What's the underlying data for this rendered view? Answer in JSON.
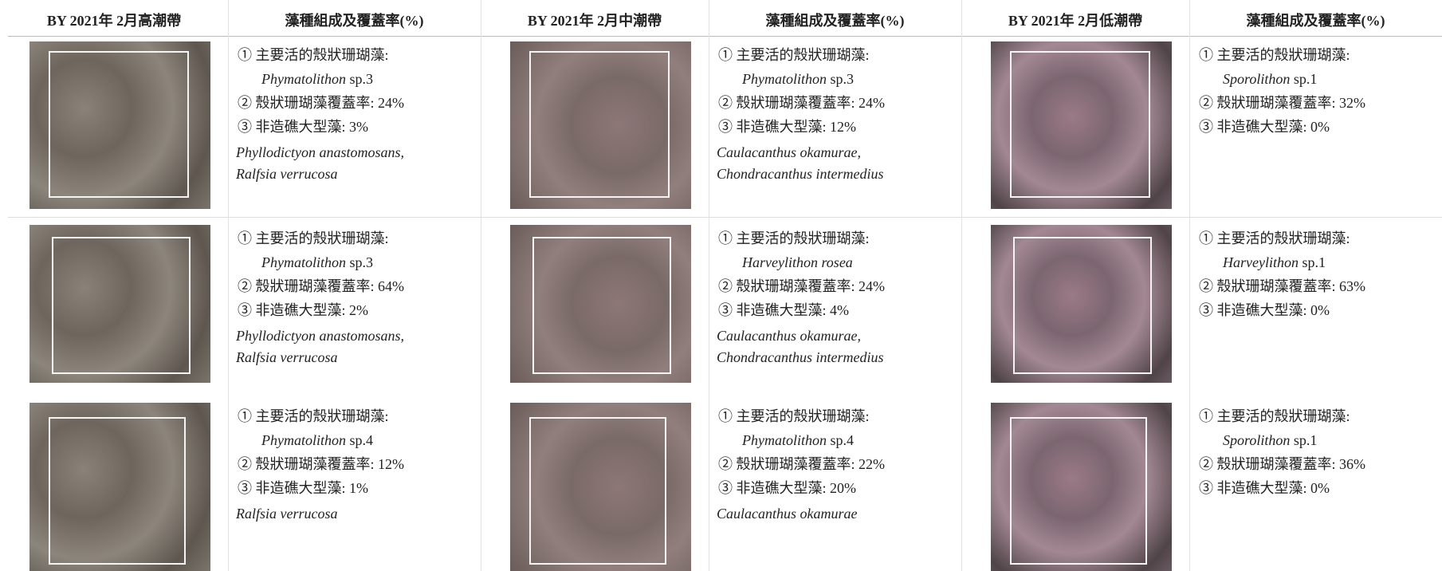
{
  "columns": [
    {
      "site": "BY 2021年 2月高潮帶",
      "composition": "藻種組成及覆蓋率(%)",
      "rows": [
        {
          "item1": "① 主要活的殼狀珊瑚藻:",
          "species": {
            "italic": "Phymatolithon",
            "plain": "sp.3"
          },
          "item2": "② 殼狀珊瑚藻覆蓋率: 24%",
          "item3": "③ 非造礁大型藻: 3%",
          "macroalgae": [
            "Phyllodictyon anastomosans,",
            "Ralfsia verrucosa"
          ]
        },
        {
          "item1": "① 主要活的殼狀珊瑚藻:",
          "species": {
            "italic": "Phymatolithon",
            "plain": "sp.3"
          },
          "item2": "② 殼狀珊瑚藻覆蓋率: 64%",
          "item3": "③ 非造礁大型藻: 2%",
          "macroalgae": [
            "Phyllodictyon anastomosans,",
            "Ralfsia verrucosa"
          ]
        },
        {
          "item1": "① 主要活的殼狀珊瑚藻:",
          "species": {
            "italic": "Phymatolithon",
            "plain": "sp.4"
          },
          "item2": "② 殼狀珊瑚藻覆蓋率: 12%",
          "item3": "③ 非造礁大型藻: 1%",
          "macroalgae": [
            "Ralfsia verrucosa"
          ]
        }
      ]
    },
    {
      "site": "BY 2021年 2月中潮帶",
      "composition": "藻種組成及覆蓋率(%)",
      "rows": [
        {
          "item1": "① 主要活的殼狀珊瑚藻:",
          "species": {
            "italic": "Phymatolithon",
            "plain": "sp.3"
          },
          "item2": "② 殼狀珊瑚藻覆蓋率: 24%",
          "item3": "③ 非造礁大型藻: 12%",
          "macroalgae": [
            "Caulacanthus okamurae,",
            "Chondracanthus intermedius"
          ]
        },
        {
          "item1": "① 主要活的殼狀珊瑚藻:",
          "species": {
            "italic": "Harveylithon rosea"
          },
          "item2": "② 殼狀珊瑚藻覆蓋率: 24%",
          "item3": "③ 非造礁大型藻: 4%",
          "macroalgae": [
            "Caulacanthus okamurae,",
            "Chondracanthus intermedius"
          ]
        },
        {
          "item1": "① 主要活的殼狀珊瑚藻:",
          "species": {
            "italic": "Phymatolithon",
            "plain": "sp.4"
          },
          "item2": "② 殼狀珊瑚藻覆蓋率: 22%",
          "item3": "③ 非造礁大型藻: 20%",
          "macroalgae": [
            "Caulacanthus okamurae"
          ]
        }
      ]
    },
    {
      "site": "BY 2021年 2月低潮帶",
      "composition": "藻種組成及覆蓋率(%)",
      "rows": [
        {
          "item1": "① 主要活的殼狀珊瑚藻:",
          "species": {
            "italic": "Sporolithon",
            "plain": "sp.1"
          },
          "item2": "② 殼狀珊瑚藻覆蓋率: 32%",
          "item3": "③ 非造礁大型藻: 0%",
          "macroalgae": []
        },
        {
          "item1": "① 主要活的殼狀珊瑚藻:",
          "species": {
            "italic": "Harveylithon",
            "plain": "sp.1"
          },
          "item2": "② 殼狀珊瑚藻覆蓋率: 63%",
          "item3": "③ 非造礁大型藻: 0%",
          "macroalgae": []
        },
        {
          "item1": "① 主要活的殼狀珊瑚藻:",
          "species": {
            "italic": "Sporolithon",
            "plain": "sp.1"
          },
          "item2": "② 殼狀珊瑚藻覆蓋率: 36%",
          "item3": "③ 非造礁大型藻: 0%",
          "macroalgae": []
        }
      ]
    }
  ]
}
